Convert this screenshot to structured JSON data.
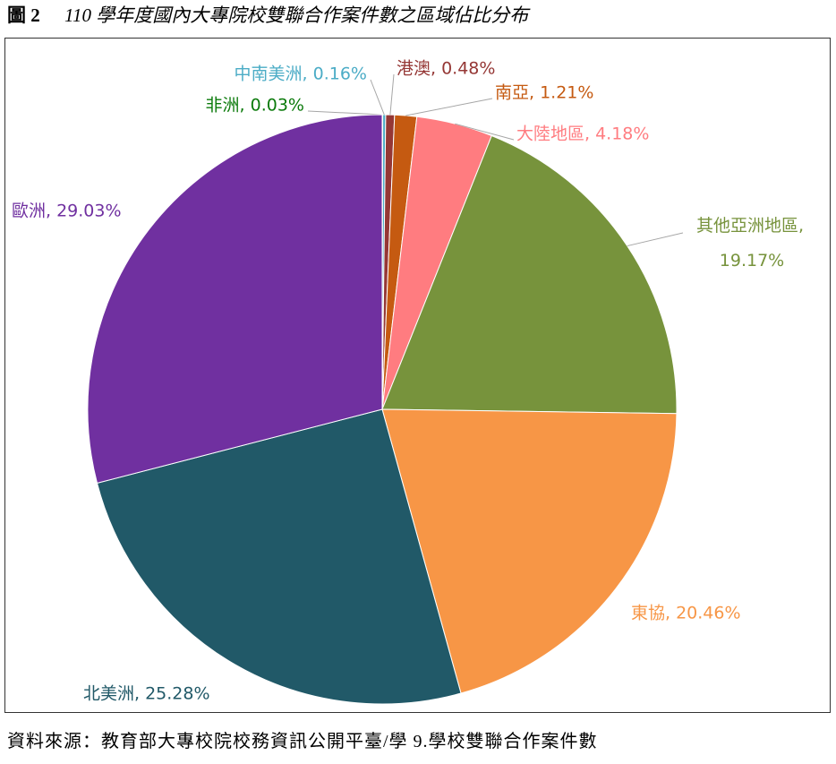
{
  "chart_data": {
    "type": "pie",
    "figure_label": "圖 2",
    "title": "110 學年度國內大專院校雙聯合作案件數之區域佔比分布",
    "source": "資料來源：教育部大專校院校務資訊公開平臺/學 9.學校雙聯合作案件數",
    "labels": [
      "非洲, 0.03%",
      "中南美洲, 0.16%",
      "港澳, 0.48%",
      "南亞, 1.21%",
      "大陸地區, 4.18%",
      "其他亞洲地區,\n19.17%",
      "東協, 20.46%",
      "北美洲, 25.28%",
      "歐洲, 29.03%"
    ],
    "values": [
      0.03,
      0.16,
      0.48,
      1.21,
      4.18,
      19.17,
      20.46,
      25.28,
      29.03
    ],
    "colors": [
      "#2e7d32",
      "#4bacc6",
      "#953735",
      "#c55a11",
      "#ff7c80",
      "#77933c",
      "#f79646",
      "#215968",
      "#7030a0"
    ],
    "label_colors": [
      "#0b7a0b",
      "#4bacc6",
      "#953735",
      "#c55a11",
      "#ff7c80",
      "#77933c",
      "#f79646",
      "#215968",
      "#7030a0"
    ]
  }
}
